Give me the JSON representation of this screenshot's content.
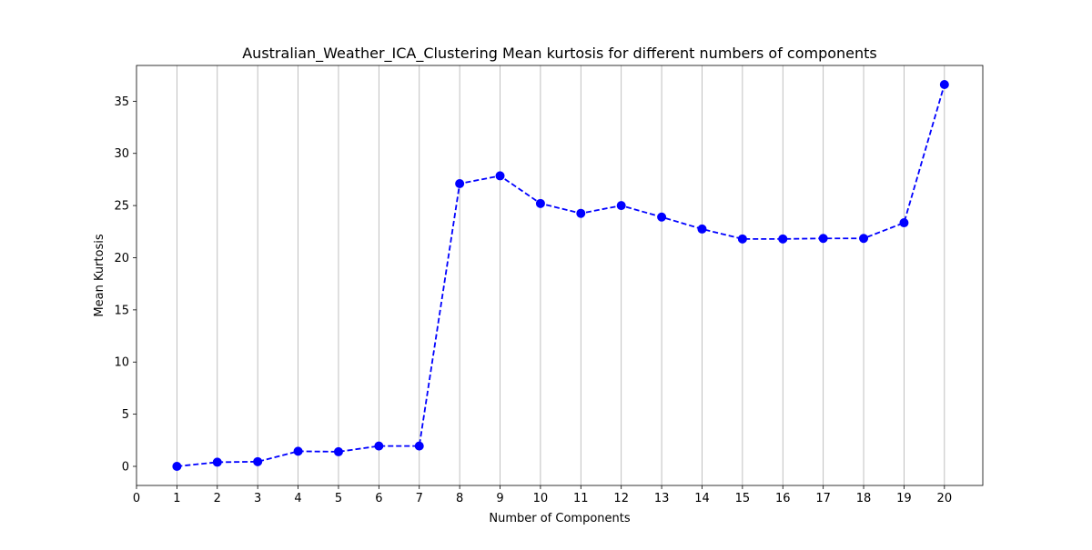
{
  "chart_data": {
    "type": "line",
    "title": "Australian_Weather_ICA_Clustering Mean kurtosis for different numbers of components",
    "xlabel": "Number of Components",
    "ylabel": "Mean Kurtosis",
    "x": [
      1,
      2,
      3,
      4,
      5,
      6,
      7,
      8,
      9,
      10,
      11,
      12,
      13,
      14,
      15,
      16,
      17,
      18,
      19,
      20
    ],
    "series": [
      {
        "values": [
          0.0,
          0.4,
          0.45,
          1.45,
          1.4,
          1.95,
          1.95,
          27.1,
          27.85,
          25.2,
          24.25,
          25.0,
          23.9,
          22.75,
          21.8,
          21.8,
          21.85,
          21.85,
          23.35,
          36.6
        ],
        "color": "#0000ff",
        "line_style": "dashed",
        "marker": "circle"
      }
    ],
    "xlim": [
      0,
      20.95
    ],
    "ylim": [
      -1.83,
      38.43
    ],
    "xticks": [
      "0",
      "1",
      "2",
      "3",
      "4",
      "5",
      "6",
      "7",
      "8",
      "9",
      "10",
      "11",
      "12",
      "13",
      "14",
      "15",
      "16",
      "17",
      "18",
      "19",
      "20"
    ],
    "yticks": [
      "0",
      "5",
      "10",
      "15",
      "20",
      "25",
      "30",
      "35"
    ],
    "grid": "vertical"
  }
}
